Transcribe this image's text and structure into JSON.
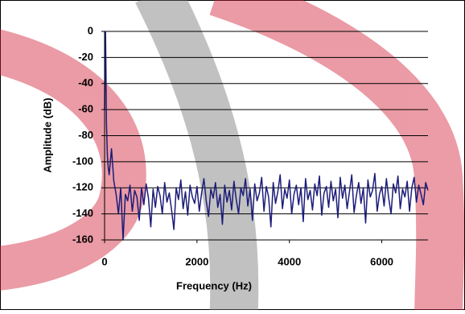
{
  "chart_data": {
    "type": "line",
    "x_label": "Frequency (Hz)",
    "y_label": "Amplitude (dB)",
    "xlim": [
      0,
      7000
    ],
    "ylim": [
      -160,
      0
    ],
    "xticks": [
      0,
      2000,
      4000,
      6000
    ],
    "yticks": [
      0,
      -20,
      -40,
      -60,
      -80,
      -100,
      -120,
      -140,
      -160
    ],
    "grid": true,
    "x": [
      0,
      10,
      20,
      30,
      40,
      60,
      80,
      100,
      150,
      200,
      250,
      300,
      350,
      400,
      450,
      500,
      550,
      600,
      650,
      700,
      750,
      800,
      850,
      900,
      950,
      1000,
      1050,
      1100,
      1150,
      1200,
      1250,
      1300,
      1350,
      1400,
      1450,
      1500,
      1550,
      1600,
      1650,
      1700,
      1750,
      1800,
      1850,
      1900,
      1950,
      2000,
      2050,
      2100,
      2150,
      2200,
      2250,
      2300,
      2350,
      2400,
      2450,
      2500,
      2550,
      2600,
      2650,
      2700,
      2750,
      2800,
      2850,
      2900,
      2950,
      3000,
      3050,
      3100,
      3150,
      3200,
      3250,
      3300,
      3350,
      3400,
      3450,
      3500,
      3550,
      3600,
      3650,
      3700,
      3750,
      3800,
      3850,
      3900,
      3950,
      4000,
      4050,
      4100,
      4150,
      4200,
      4250,
      4300,
      4350,
      4400,
      4450,
      4500,
      4550,
      4600,
      4650,
      4700,
      4750,
      4800,
      4850,
      4900,
      4950,
      5000,
      5050,
      5100,
      5150,
      5200,
      5250,
      5300,
      5350,
      5400,
      5450,
      5500,
      5550,
      5600,
      5650,
      5700,
      5750,
      5800,
      5850,
      5900,
      5950,
      6000,
      6050,
      6100,
      6150,
      6200,
      6250,
      6300,
      6350,
      6400,
      6450,
      6500,
      6550,
      6600,
      6650,
      6700,
      6750,
      6800,
      6850,
      6900,
      6950,
      7000
    ],
    "series": [
      {
        "color": "#1c1c7a",
        "values": [
          -60,
          -20,
          0,
          -30,
          -70,
          -95,
          -105,
          -110,
          -90,
          -115,
          -125,
          -140,
          -120,
          -160,
          -125,
          -130,
          -118,
          -138,
          -122,
          -127,
          -145,
          -120,
          -133,
          -117,
          -128,
          -150,
          -121,
          -135,
          -119,
          -126,
          -140,
          -116,
          -131,
          -124,
          -137,
          -152,
          -120,
          -129,
          -114,
          -136,
          -123,
          -141,
          -118,
          -127,
          -132,
          -119,
          -138,
          -124,
          -113,
          -130,
          -142,
          -121,
          -128,
          -116,
          -135,
          -125,
          -148,
          -118,
          -131,
          -122,
          -137,
          -115,
          -129,
          -140,
          -120,
          -126,
          -113,
          -134,
          -121,
          -145,
          -117,
          -130,
          -124,
          -112,
          -138,
          -119,
          -127,
          -150,
          -116,
          -132,
          -123,
          -110,
          -136,
          -121,
          -128,
          -114,
          -140,
          -125,
          -118,
          -133,
          -120,
          -146,
          -113,
          -129,
          -122,
          -137,
          -117,
          -126,
          -111,
          -141,
          -124,
          -119,
          -135,
          -115,
          -130,
          -121,
          -143,
          -112,
          -128,
          -118,
          -136,
          -123,
          -110,
          -139,
          -126,
          -116,
          -132,
          -120,
          -147,
          -114,
          -127,
          -122,
          -109,
          -138,
          -125,
          -119,
          -134,
          -113,
          -128,
          -140,
          -117,
          -124,
          -111,
          -136,
          -121,
          -127,
          -115,
          -138,
          -120,
          -112,
          -131,
          -118,
          -125,
          -133,
          -116,
          -122
        ]
      }
    ]
  }
}
